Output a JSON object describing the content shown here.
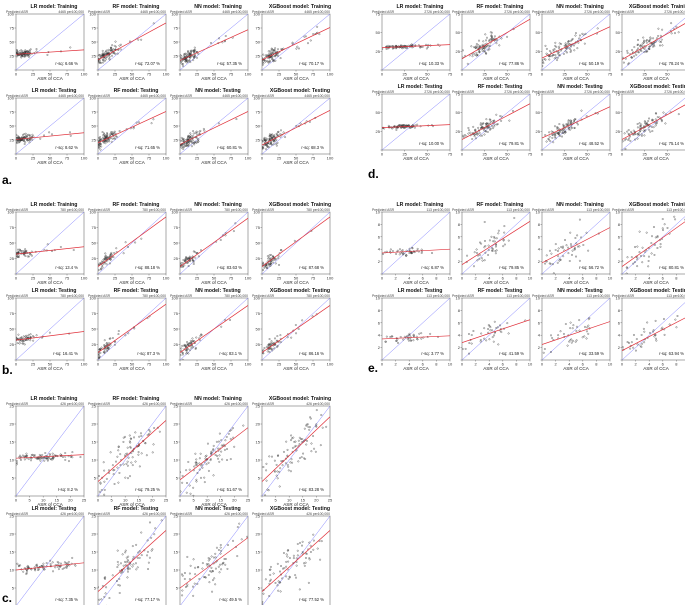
{
  "figure": {
    "type": "multi-panel regression scatter plots",
    "colors": {
      "points": "#333333",
      "identity_line": "#8080ff",
      "fit_line": "#e0303a",
      "frame": "#555555"
    }
  },
  "chart_data": [
    {
      "group": "a.",
      "unit_label": "4465 per100,000",
      "ylabel": "Predicted ASR",
      "xlabel": "ASR of CCA",
      "xlim": [
        0,
        100
      ],
      "ylim": [
        0,
        100
      ],
      "x_ticks": [
        0,
        25,
        50,
        75,
        100
      ],
      "y_ticks": [
        0,
        25,
        50,
        75,
        100
      ],
      "y_tick_labels": [
        "",
        "25",
        "50",
        "75",
        "100"
      ],
      "panels": [
        {
          "title": "LR model: Training",
          "type": "scatter",
          "r_sq": "r-sq: 6.66 %",
          "fit": [
            [
              0,
              28
            ],
            [
              100,
              36
            ]
          ],
          "cluster": {
            "cx": 10,
            "cy": 28,
            "sx": 7,
            "sy": 6,
            "n": 90
          }
        },
        {
          "title": "RF model: Training",
          "type": "scatter",
          "r_sq": "r-sq: 72.07 %",
          "fit": [
            [
              0,
              18
            ],
            [
              100,
              84
            ]
          ],
          "cluster": {
            "cx": 12,
            "cy": 25,
            "sx": 9,
            "sy": 9,
            "n": 100
          }
        },
        {
          "title": "NN model: Training",
          "type": "scatter",
          "r_sq": "r-sq: 57.35 %",
          "fit": [
            [
              0,
              17
            ],
            [
              100,
              72
            ]
          ],
          "cluster": {
            "cx": 12,
            "cy": 26,
            "sx": 9,
            "sy": 10,
            "n": 100
          }
        },
        {
          "title": "XGBoost model: Training",
          "type": "scatter",
          "r_sq": "r-sq: 70.17 %",
          "fit": [
            [
              0,
              18
            ],
            [
              100,
              76
            ]
          ],
          "cluster": {
            "cx": 12,
            "cy": 24,
            "sx": 9,
            "sy": 9,
            "n": 100
          }
        },
        {
          "title": "LR model: Testing",
          "type": "scatter",
          "r_sq": "r-sq: 8.62 %",
          "fit": [
            [
              0,
              26
            ],
            [
              100,
              38
            ]
          ],
          "cluster": {
            "cx": 10,
            "cy": 28,
            "sx": 7,
            "sy": 6,
            "n": 90
          }
        },
        {
          "title": "RF model: Testing",
          "type": "scatter",
          "r_sq": "r-sq: 71.65 %",
          "fit": [
            [
              0,
              20
            ],
            [
              100,
              76
            ]
          ],
          "cluster": {
            "cx": 12,
            "cy": 26,
            "sx": 9,
            "sy": 9,
            "n": 100
          }
        },
        {
          "title": "NN model: Testing",
          "type": "scatter",
          "r_sq": "r-sq: 60.81 %",
          "fit": [
            [
              0,
              17
            ],
            [
              100,
              76
            ]
          ],
          "cluster": {
            "cx": 12,
            "cy": 26,
            "sx": 9,
            "sy": 10,
            "n": 100
          }
        },
        {
          "title": "XGBoost model: Testing",
          "type": "scatter",
          "r_sq": "r-sq: 68.3 %",
          "fit": [
            [
              0,
              16
            ],
            [
              100,
              78
            ]
          ],
          "cluster": {
            "cx": 12,
            "cy": 25,
            "sx": 9,
            "sy": 9,
            "n": 100
          }
        }
      ]
    },
    {
      "group": "b.",
      "unit_label": "780 per100,000",
      "ylabel": "Predicted ASR",
      "xlabel": "ASR of CCA",
      "xlim": [
        0,
        100
      ],
      "ylim": [
        0,
        100
      ],
      "x_ticks": [
        0,
        25,
        50,
        75,
        100
      ],
      "y_ticks": [
        0,
        25,
        50,
        75,
        100
      ],
      "y_tick_labels": [
        "",
        "25",
        "50",
        "75",
        "100"
      ],
      "panels": [
        {
          "title": "LR model: Training",
          "type": "scatter",
          "r_sq": "r-sq: 13.4 %",
          "fit": [
            [
              0,
              32
            ],
            [
              100,
              44
            ]
          ],
          "cluster": {
            "cx": 12,
            "cy": 34,
            "sx": 8,
            "sy": 6,
            "n": 55
          }
        },
        {
          "title": "RF model: Training",
          "type": "scatter",
          "r_sq": "r-sq: 88.18 %",
          "fit": [
            [
              0,
              12
            ],
            [
              100,
              92
            ]
          ],
          "cluster": {
            "cx": 12,
            "cy": 22,
            "sx": 8,
            "sy": 8,
            "n": 60
          }
        },
        {
          "title": "NN model: Training",
          "type": "scatter",
          "r_sq": "r-sq: 83.63 %",
          "fit": [
            [
              0,
              12
            ],
            [
              100,
              90
            ]
          ],
          "cluster": {
            "cx": 12,
            "cy": 22,
            "sx": 8,
            "sy": 8,
            "n": 60
          }
        },
        {
          "title": "XGBoost model: Training",
          "type": "scatter",
          "r_sq": "r-sq: 87.68 %",
          "fit": [
            [
              0,
              12
            ],
            [
              100,
              92
            ]
          ],
          "cluster": {
            "cx": 12,
            "cy": 22,
            "sx": 8,
            "sy": 8,
            "n": 60
          }
        },
        {
          "title": "LR model: Testing",
          "type": "scatter",
          "r_sq": "r-sq: 16.41 %",
          "fit": [
            [
              0,
              32
            ],
            [
              100,
              46
            ]
          ],
          "cluster": {
            "cx": 12,
            "cy": 34,
            "sx": 8,
            "sy": 6,
            "n": 55
          }
        },
        {
          "title": "RF model: Testing",
          "type": "scatter",
          "r_sq": "r-sq: 87.3 %",
          "fit": [
            [
              0,
              12
            ],
            [
              100,
              90
            ]
          ],
          "cluster": {
            "cx": 12,
            "cy": 22,
            "sx": 8,
            "sy": 8,
            "n": 60
          }
        },
        {
          "title": "NN model: Testing",
          "type": "scatter",
          "r_sq": "r-sq: 83.1 %",
          "fit": [
            [
              0,
              12
            ],
            [
              100,
              88
            ]
          ],
          "cluster": {
            "cx": 12,
            "cy": 22,
            "sx": 8,
            "sy": 8,
            "n": 60
          }
        },
        {
          "title": "XGBoost model: Testing",
          "type": "scatter",
          "r_sq": "r-sq: 86.16 %",
          "fit": [
            [
              0,
              12
            ],
            [
              100,
              88
            ]
          ],
          "cluster": {
            "cx": 12,
            "cy": 22,
            "sx": 8,
            "sy": 8,
            "n": 60
          }
        }
      ]
    },
    {
      "group": "c.",
      "unit_label": "426 per100,000",
      "ylabel": "Predicted ASR",
      "xlabel": "ASR of CCA",
      "xlim": [
        0,
        25
      ],
      "ylim": [
        0,
        25
      ],
      "x_ticks": [
        0,
        5,
        10,
        15,
        20,
        25
      ],
      "y_ticks": [
        0,
        5,
        10,
        15,
        20,
        25
      ],
      "y_tick_labels": [
        "",
        "5",
        "10",
        "15",
        "20",
        "25"
      ],
      "panels": [
        {
          "title": "LR model: Training",
          "type": "scatter",
          "r_sq": "r-sq: 8.2 %",
          "fit": [
            [
              0,
              10.5
            ],
            [
              25,
              11.5
            ]
          ],
          "cluster": {
            "cx": 10,
            "cy": 11,
            "sx": 6,
            "sy": 1.2,
            "n": 90
          }
        },
        {
          "title": "RF model: Training",
          "type": "scatter",
          "r_sq": "r-sq: 79.25 %",
          "fit": [
            [
              0,
              4
            ],
            [
              25,
              21
            ]
          ],
          "cluster": {
            "cx": 11,
            "cy": 11,
            "sx": 6,
            "sy": 5,
            "n": 90
          }
        },
        {
          "title": "NN model: Training",
          "type": "scatter",
          "r_sq": "r-sq: 51.67 %",
          "fit": [
            [
              0,
              4.5
            ],
            [
              25,
              19
            ]
          ],
          "cluster": {
            "cx": 11,
            "cy": 11,
            "sx": 6,
            "sy": 5,
            "n": 90
          }
        },
        {
          "title": "XGBoost model: Training",
          "type": "scatter",
          "r_sq": "r-sq: 83.28 %",
          "fit": [
            [
              0,
              4
            ],
            [
              25,
              22
            ]
          ],
          "cluster": {
            "cx": 11,
            "cy": 11,
            "sx": 6,
            "sy": 5,
            "n": 90
          }
        },
        {
          "title": "LR model: Testing",
          "type": "scatter",
          "r_sq": "r-sq: 7.35 %",
          "fit": [
            [
              0,
              10
            ],
            [
              25,
              12
            ]
          ],
          "cluster": {
            "cx": 10,
            "cy": 11,
            "sx": 6,
            "sy": 1.2,
            "n": 80
          }
        },
        {
          "title": "RF model: Testing",
          "type": "scatter",
          "r_sq": "r-sq: 77.17 %",
          "fit": [
            [
              0,
              4
            ],
            [
              25,
              21
            ]
          ],
          "cluster": {
            "cx": 11,
            "cy": 11,
            "sx": 6,
            "sy": 5,
            "n": 80
          }
        },
        {
          "title": "NN model: Testing",
          "type": "scatter",
          "r_sq": "r-sq: 49.5 %",
          "fit": [
            [
              0,
              5
            ],
            [
              25,
              19
            ]
          ],
          "cluster": {
            "cx": 11,
            "cy": 11,
            "sx": 6,
            "sy": 5,
            "n": 80
          }
        },
        {
          "title": "XGBoost model: Testing",
          "type": "scatter",
          "r_sq": "r-sq: 77.52 %",
          "fit": [
            [
              0,
              4
            ],
            [
              25,
              21
            ]
          ],
          "cluster": {
            "cx": 11,
            "cy": 11,
            "sx": 6,
            "sy": 5,
            "n": 80
          }
        }
      ]
    },
    {
      "group": "d.",
      "unit_label": "2726 per100,000",
      "ylabel": "Predicted ASR",
      "xlabel": "ASR of CCA",
      "xlim": [
        0,
        75
      ],
      "ylim": [
        0,
        75
      ],
      "x_ticks": [
        0,
        25,
        50,
        75
      ],
      "y_ticks": [
        0,
        25,
        50,
        75
      ],
      "y_tick_labels": [
        "",
        "25",
        "50",
        "75"
      ],
      "panels": [
        {
          "title": "LR model: Training",
          "type": "scatter",
          "r_sq": "r-sq: 10.33 %",
          "fit": [
            [
              0,
              30
            ],
            [
              75,
              34
            ]
          ],
          "cluster": {
            "cx": 22,
            "cy": 31,
            "sx": 10,
            "sy": 2,
            "n": 80
          }
        },
        {
          "title": "RF model: Training",
          "type": "scatter",
          "r_sq": "r-sq: 77.86 %",
          "fit": [
            [
              0,
              15
            ],
            [
              75,
              68
            ]
          ],
          "cluster": {
            "cx": 24,
            "cy": 30,
            "sx": 10,
            "sy": 9,
            "n": 90
          }
        },
        {
          "title": "NN model: Training",
          "type": "scatter",
          "r_sq": "r-sq: 50.19 %",
          "fit": [
            [
              0,
              16
            ],
            [
              75,
              58
            ]
          ],
          "cluster": {
            "cx": 24,
            "cy": 30,
            "sx": 10,
            "sy": 9,
            "n": 90
          }
        },
        {
          "title": "XGBoost model: Training",
          "type": "scatter",
          "r_sq": "r-sq: 78.24 %",
          "fit": [
            [
              0,
              14
            ],
            [
              75,
              66
            ]
          ],
          "cluster": {
            "cx": 24,
            "cy": 30,
            "sx": 10,
            "sy": 9,
            "n": 90
          }
        },
        {
          "title": "LR model: Testing",
          "type": "scatter",
          "r_sq": "r-sq: 10.00 %",
          "fit": [
            [
              0,
              30
            ],
            [
              75,
              34
            ]
          ],
          "cluster": {
            "cx": 22,
            "cy": 31,
            "sx": 10,
            "sy": 2,
            "n": 80
          }
        },
        {
          "title": "RF model: Testing",
          "type": "scatter",
          "r_sq": "r-sq: 79.81 %",
          "fit": [
            [
              0,
              14
            ],
            [
              75,
              62
            ]
          ],
          "cluster": {
            "cx": 24,
            "cy": 30,
            "sx": 10,
            "sy": 9,
            "n": 90
          }
        },
        {
          "title": "NN model: Testing",
          "type": "scatter",
          "r_sq": "r-sq: 48.52 %",
          "fit": [
            [
              0,
              16
            ],
            [
              75,
              58
            ]
          ],
          "cluster": {
            "cx": 24,
            "cy": 30,
            "sx": 10,
            "sy": 9,
            "n": 90
          }
        },
        {
          "title": "XGBoost model: Testing",
          "type": "scatter",
          "r_sq": "r-sq: 75.14 %",
          "fit": [
            [
              0,
              14
            ],
            [
              75,
              64
            ]
          ],
          "cluster": {
            "cx": 24,
            "cy": 30,
            "sx": 10,
            "sy": 9,
            "n": 90
          }
        }
      ]
    },
    {
      "group": "e.",
      "unit_label": "113 per100,000",
      "ylabel": "Predicted ASR",
      "xlabel": "ASR of CCA",
      "xlim": [
        0,
        10
      ],
      "ylim": [
        0,
        10
      ],
      "x_ticks": [
        0,
        2,
        4,
        6,
        8,
        10
      ],
      "y_ticks": [
        0,
        2,
        4,
        6,
        8,
        10
      ],
      "y_tick_labels": [
        "",
        "2",
        "4",
        "6",
        "8",
        "10"
      ],
      "panels": [
        {
          "title": "LR model: Training",
          "type": "scatter",
          "r_sq": "r-sq: 6.87 %",
          "fit": [
            [
              0,
              3.4
            ],
            [
              10,
              4.0
            ]
          ],
          "cluster": {
            "cx": 3.5,
            "cy": 3.6,
            "sx": 1.8,
            "sy": 0.5,
            "n": 45
          }
        },
        {
          "title": "RF model: Training",
          "type": "scatter",
          "r_sq": "r-sq: 79.85 %",
          "fit": [
            [
              0,
              1.5
            ],
            [
              10,
              8.5
            ]
          ],
          "cluster": {
            "cx": 4,
            "cy": 4,
            "sx": 2,
            "sy": 2,
            "n": 50
          }
        },
        {
          "title": "NN model: Training",
          "type": "scatter",
          "r_sq": "r-sq: 56.72 %",
          "fit": [
            [
              0,
              1.8
            ],
            [
              10,
              7.5
            ]
          ],
          "cluster": {
            "cx": 4,
            "cy": 4,
            "sx": 2,
            "sy": 2,
            "n": 50
          }
        },
        {
          "title": "XGBoost model: Training",
          "type": "scatter",
          "r_sq": "r-sq: 80.81 %",
          "fit": [
            [
              0,
              1.2
            ],
            [
              10,
              9
            ]
          ],
          "cluster": {
            "cx": 4,
            "cy": 4,
            "sx": 2,
            "sy": 2,
            "n": 50
          }
        },
        {
          "title": "LR model: Testing",
          "type": "scatter",
          "r_sq": "r-sq: 3.77 %",
          "fit": [
            [
              0,
              3.4
            ],
            [
              10,
              3.9
            ]
          ],
          "cluster": {
            "cx": 3.5,
            "cy": 3.6,
            "sx": 1.8,
            "sy": 0.5,
            "n": 40
          }
        },
        {
          "title": "RF model: Testing",
          "type": "scatter",
          "r_sq": "r-sq: 41.59 %",
          "fit": [
            [
              0,
              2.8
            ],
            [
              10,
              6.5
            ]
          ],
          "cluster": {
            "cx": 4,
            "cy": 4,
            "sx": 2,
            "sy": 2,
            "n": 40
          }
        },
        {
          "title": "NN model: Testing",
          "type": "scatter",
          "r_sq": "r-sq: 33.59 %",
          "fit": [
            [
              0,
              2.5
            ],
            [
              10,
              6.2
            ]
          ],
          "cluster": {
            "cx": 4,
            "cy": 4,
            "sx": 2,
            "sy": 2,
            "n": 40
          }
        },
        {
          "title": "XGBoost model: Testing",
          "type": "scatter",
          "r_sq": "r-sq: 63.94 %",
          "fit": [
            [
              0,
              1.5
            ],
            [
              10,
              7.2
            ]
          ],
          "cluster": {
            "cx": 4,
            "cy": 4,
            "sx": 2,
            "sy": 2,
            "n": 40
          }
        }
      ]
    }
  ]
}
